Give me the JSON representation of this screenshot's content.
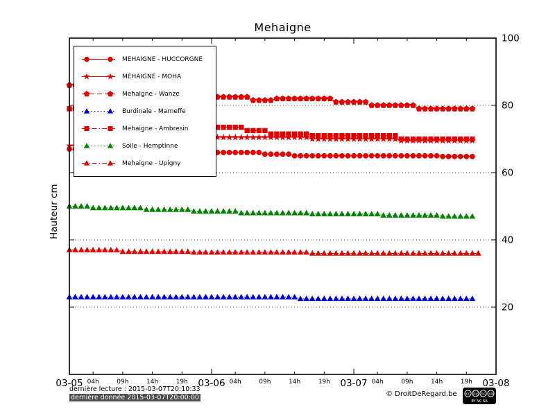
{
  "page": {
    "title": "Mehaigne"
  },
  "footer": {
    "last_reading": "dernière lecture : 2015-03-07T20:10:33",
    "last_data": "dernière donnée  2015-03-07T20:00:00",
    "copyright": "© DroitDeRegard.be",
    "license_short": "BY NC SA",
    "license_name": "CC BY NC SA"
  },
  "chart_data": {
    "type": "line",
    "title": "Mehaigne",
    "xlabel": "",
    "ylabel": "Hauteur cm",
    "ylim": [
      0,
      100
    ],
    "xlim_hours": [
      0,
      72
    ],
    "x_start": "2015-03-05 00:00",
    "x_step_hours": 1,
    "grid": "horizontal-dotted",
    "legend_position": "upper-left",
    "y_ticks": [
      100,
      80,
      60,
      40,
      20
    ],
    "grid_y": [
      80,
      60,
      40,
      20
    ],
    "x_major_ticks": [
      {
        "hour": 0,
        "label": "03-05"
      },
      {
        "hour": 24,
        "label": "03-06"
      },
      {
        "hour": 48,
        "label": "03-07"
      },
      {
        "hour": 72,
        "label": "03-08"
      }
    ],
    "x_minor_ticks": [
      {
        "hour": 4,
        "label": "04h"
      },
      {
        "hour": 9,
        "label": "09h"
      },
      {
        "hour": 14,
        "label": "14h"
      },
      {
        "hour": 19,
        "label": "19h"
      },
      {
        "hour": 28,
        "label": "04h"
      },
      {
        "hour": 33,
        "label": "09h"
      },
      {
        "hour": 38,
        "label": "14h"
      },
      {
        "hour": 43,
        "label": "19h"
      },
      {
        "hour": 52,
        "label": "04h"
      },
      {
        "hour": 57,
        "label": "09h"
      },
      {
        "hour": 62,
        "label": "14h"
      },
      {
        "hour": 67,
        "label": "19h"
      }
    ],
    "series": [
      {
        "id": "huccorgne",
        "name": "MEHAIGNE - HUCCORGNE",
        "color": "#dd0000",
        "marker": "circle",
        "line": "solid",
        "values": [
          67,
          67,
          67,
          67,
          67,
          67,
          67,
          67,
          67,
          67,
          67,
          67,
          66.5,
          66.5,
          66.5,
          66.5,
          66.5,
          66.5,
          66.5,
          66.5,
          66.5,
          66.5,
          66.5,
          66.5,
          66,
          66,
          66,
          66,
          66,
          66,
          66,
          66,
          66,
          65.5,
          65.5,
          65.5,
          65.5,
          65.5,
          65,
          65,
          65,
          65,
          65,
          65,
          65,
          65,
          65,
          65,
          65,
          65,
          65,
          65,
          65,
          65,
          65,
          65,
          65,
          65,
          65,
          65,
          65,
          65,
          65,
          64.8,
          64.8,
          64.8,
          64.8,
          64.8,
          64.8
        ]
      },
      {
        "id": "moha",
        "name": "MEHAIGNE - MOHA",
        "color": "#dd0000",
        "marker": "star",
        "line": "solid",
        "values": [
          68,
          68,
          68,
          68,
          68,
          68,
          68.5,
          68.5,
          68.5,
          68.5,
          68.5,
          68.5,
          69.5,
          69.5,
          69.5,
          69.5,
          69.5,
          69.5,
          70,
          70,
          70,
          70,
          70,
          70,
          70.5,
          70.5,
          70.5,
          70.5,
          70.5,
          70.5,
          70.5,
          70.5,
          70.5,
          70.5,
          70.5,
          70.5,
          70.5,
          70.5,
          70.5,
          70.5,
          70.5,
          70,
          70,
          70,
          70,
          70,
          70,
          70,
          70,
          70,
          70,
          70,
          70,
          70,
          70,
          70,
          69.5,
          69.5,
          69.5,
          69.5,
          69.5,
          69.5,
          69.5,
          69.5,
          69.5,
          69.5,
          69.5,
          69.5,
          69.5
        ]
      },
      {
        "id": "wanze",
        "name": "Mehaigne - Wanze",
        "color": "#dd0000",
        "marker": "pentagon",
        "line": "dashed",
        "values": [
          86,
          86,
          86,
          86,
          85,
          85,
          85,
          85,
          85,
          85,
          84,
          84,
          84,
          84,
          84,
          84,
          83,
          83,
          83,
          83,
          83,
          83,
          83,
          83,
          82.5,
          82.5,
          82.5,
          82.5,
          82.5,
          82.5,
          82.5,
          81.5,
          81.5,
          81.5,
          81.5,
          82,
          82,
          82,
          82,
          82,
          82,
          82,
          82,
          82,
          82,
          81,
          81,
          81,
          81,
          81,
          81,
          80,
          80,
          80,
          80,
          80,
          80,
          80,
          80,
          79,
          79,
          79,
          79,
          79,
          79,
          79,
          79,
          79,
          79
        ]
      },
      {
        "id": "marneffe",
        "name": "Burdinale - Marneffe",
        "color": "#0000cc",
        "marker": "triangle",
        "line": "dotted",
        "values": [
          23,
          23,
          23,
          23,
          23,
          23,
          23,
          23,
          23,
          23,
          23,
          23,
          23,
          23,
          23,
          23,
          23,
          23,
          23,
          23,
          23,
          23,
          23,
          23,
          23,
          23,
          23,
          23,
          23,
          23,
          23,
          23,
          23,
          23,
          23,
          23,
          23,
          23,
          23,
          22.5,
          22.5,
          22.5,
          22.5,
          22.5,
          22.5,
          22.5,
          22.5,
          22.5,
          22.5,
          22.5,
          22.5,
          22.5,
          22.5,
          22.5,
          22.5,
          22.5,
          22.5,
          22.5,
          22.5,
          22.5,
          22.5,
          22.5,
          22.5,
          22.5,
          22.5,
          22.5,
          22.5,
          22.5,
          22.5
        ]
      },
      {
        "id": "ambresin",
        "name": "Mehaigne - Ambresin",
        "color": "#dd0000",
        "marker": "square",
        "line": "dashdot",
        "values": [
          79,
          79,
          79,
          79,
          77.5,
          77.5,
          77.5,
          77.5,
          77.5,
          77.5,
          76,
          76,
          76,
          76,
          76,
          76,
          74.5,
          74.5,
          74.5,
          74.5,
          74.5,
          74.5,
          74.5,
          74.5,
          73.5,
          73.5,
          73.5,
          73.5,
          73.5,
          73.5,
          72.5,
          72.5,
          72.5,
          72.5,
          71.5,
          71.5,
          71.5,
          71.5,
          71.5,
          71.5,
          71.5,
          71,
          71,
          71,
          71,
          71,
          71,
          71,
          71,
          71,
          71,
          71,
          71,
          71,
          71,
          71,
          70,
          70,
          70,
          70,
          70,
          70,
          70,
          70,
          70,
          70,
          70,
          70,
          70
        ]
      },
      {
        "id": "hemptinne",
        "name": "Soile - Hemptinne",
        "color": "#008000",
        "marker": "triangle",
        "line": "dotted",
        "values": [
          50,
          50,
          50,
          50,
          49.5,
          49.5,
          49.5,
          49.5,
          49.5,
          49.5,
          49.5,
          49.5,
          49.5,
          49,
          49,
          49,
          49,
          49,
          49,
          49,
          49,
          48.5,
          48.5,
          48.5,
          48.5,
          48.5,
          48.5,
          48.5,
          48.5,
          48,
          48,
          48,
          48,
          48,
          48,
          48,
          48,
          48,
          48,
          48,
          48,
          47.7,
          47.7,
          47.7,
          47.7,
          47.7,
          47.7,
          47.7,
          47.7,
          47.7,
          47.7,
          47.7,
          47.7,
          47.3,
          47.3,
          47.3,
          47.3,
          47.3,
          47.3,
          47.3,
          47.3,
          47.3,
          47.3,
          47,
          47,
          47,
          47,
          47,
          47
        ]
      },
      {
        "id": "upigny",
        "name": "Mehaigne - Upigny",
        "color": "#dd0000",
        "marker": "triangle",
        "line": "dashdot",
        "values": [
          37,
          37,
          37,
          37,
          37,
          37,
          37,
          37,
          37,
          36.5,
          36.5,
          36.5,
          36.5,
          36.5,
          36.5,
          36.5,
          36.5,
          36.5,
          36.5,
          36.5,
          36.5,
          36.3,
          36.3,
          36.3,
          36.3,
          36.3,
          36.3,
          36.3,
          36.3,
          36.3,
          36.3,
          36.3,
          36.3,
          36.3,
          36.3,
          36.3,
          36.3,
          36.3,
          36.3,
          36.3,
          36.3,
          36,
          36,
          36,
          36,
          36,
          36,
          36,
          36,
          36,
          36,
          36,
          36,
          36,
          36,
          36,
          36,
          36,
          36,
          36,
          36,
          36,
          36,
          36,
          36,
          36,
          36,
          36,
          36,
          36
        ]
      }
    ]
  }
}
